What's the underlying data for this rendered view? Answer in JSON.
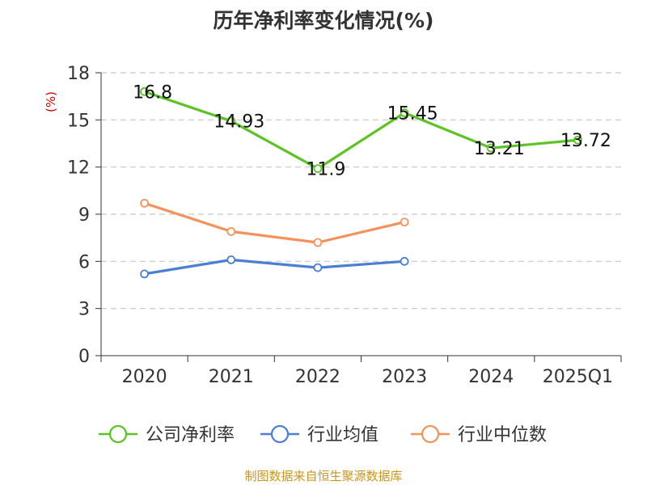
{
  "chart_data": {
    "type": "line",
    "title": "历年净利率变化情况(%)",
    "ylabel": "(%)",
    "categories": [
      "2020",
      "2021",
      "2022",
      "2023",
      "2024",
      "2025Q1"
    ],
    "ylim": [
      0,
      18
    ],
    "yticks": [
      0,
      3,
      6,
      9,
      12,
      15,
      18
    ],
    "grid": true,
    "legend_position": "bottom",
    "series": [
      {
        "name": "公司净利率",
        "color": "#5bc424",
        "values": [
          16.8,
          14.93,
          11.9,
          15.45,
          13.21,
          13.72
        ],
        "labels": [
          "16.8",
          "14.93",
          "11.9",
          "15.45",
          "13.21",
          "13.72"
        ]
      },
      {
        "name": "行业均值",
        "color": "#4a7fd4",
        "values": [
          5.2,
          6.1,
          5.6,
          6.0,
          null,
          null
        ]
      },
      {
        "name": "行业中位数",
        "color": "#f5925a",
        "values": [
          9.7,
          7.9,
          7.2,
          8.5,
          null,
          null
        ]
      }
    ]
  },
  "footer": "制图数据来自恒生聚源数据库"
}
